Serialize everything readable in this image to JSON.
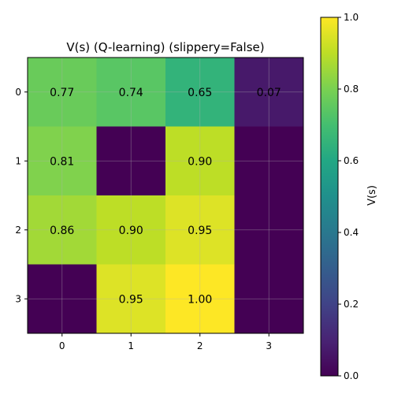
{
  "chart_data": {
    "type": "heatmap",
    "title": "V(s) (Q-learning) (slippery=False)",
    "xlabel": "",
    "ylabel": "",
    "x_ticks": [
      "0",
      "1",
      "2",
      "3"
    ],
    "y_ticks": [
      "0",
      "1",
      "2",
      "3"
    ],
    "values": [
      [
        0.77,
        0.74,
        0.65,
        0.07
      ],
      [
        0.81,
        0.0,
        0.9,
        0.0
      ],
      [
        0.86,
        0.9,
        0.95,
        0.0
      ],
      [
        0.0,
        0.95,
        1.0,
        0.0
      ]
    ],
    "cell_labels": [
      [
        "0.77",
        "0.74",
        "0.65",
        "0.07"
      ],
      [
        "0.81",
        "",
        "0.90",
        ""
      ],
      [
        "0.86",
        "0.90",
        "0.95",
        ""
      ],
      [
        "",
        "0.95",
        "1.00",
        ""
      ]
    ],
    "colormap": "viridis",
    "vmin": 0.0,
    "vmax": 1.0,
    "grid": true,
    "colorbar": {
      "label": "V(s)",
      "ticks": [
        "0.0",
        "0.2",
        "0.4",
        "0.6",
        "0.8",
        "1.0"
      ]
    }
  }
}
